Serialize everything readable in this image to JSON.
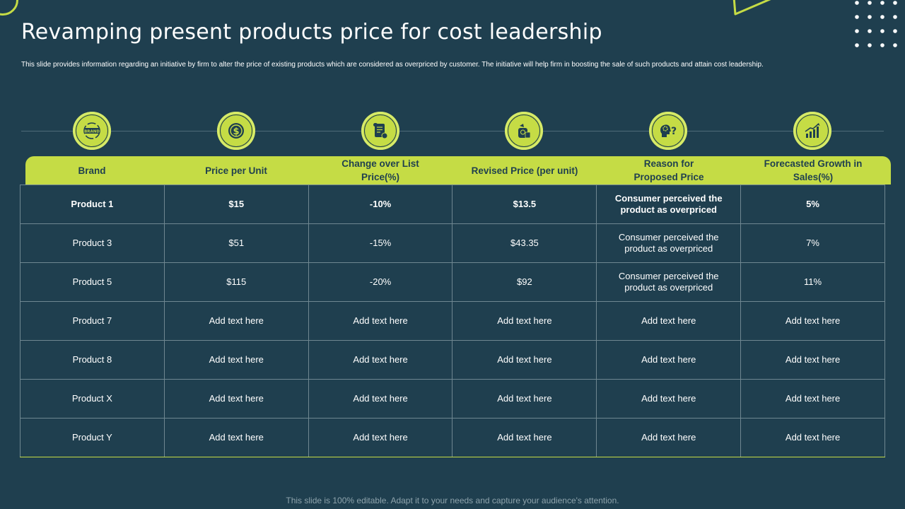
{
  "title": "Revamping present products price for cost leadership",
  "subtitle": "This slide provides information regarding an initiative by firm to alter the price of existing products which are considered as overpriced by customer. The initiative will help firm in boosting the sale of such products and attain cost leadership.",
  "icons": [
    {
      "name": "brand-badge-icon",
      "label": "BRAND"
    },
    {
      "name": "dollar-coin-icon"
    },
    {
      "name": "receipt-scroll-icon"
    },
    {
      "name": "price-tag-bag-icon"
    },
    {
      "name": "head-question-icon"
    },
    {
      "name": "growth-chart-icon"
    }
  ],
  "table": {
    "headers": [
      "Brand",
      "Price per Unit",
      "Change over List Price(%)",
      "Revised Price (per unit)",
      "Reason for Proposed Price",
      "Forecasted Growth in Sales(%)"
    ],
    "rows": [
      [
        "Product 1",
        "$15",
        "-10%",
        "$13.5",
        "Consumer perceived the product as overpriced",
        "5%"
      ],
      [
        "Product 3",
        "$51",
        "-15%",
        "$43.35",
        "Consumer perceived the product as overpriced",
        "7%"
      ],
      [
        "Product 5",
        "$115",
        "-20%",
        "$92",
        "Consumer perceived the product as overpriced",
        "11%"
      ],
      [
        "Product 7",
        "Add text here",
        "Add text here",
        "Add text here",
        "Add text here",
        "Add text here"
      ],
      [
        "Product 8",
        "Add text here",
        "Add text here",
        "Add text here",
        "Add text here",
        "Add text here"
      ],
      [
        "Product X",
        "Add text here",
        "Add text here",
        "Add text here",
        "Add text here",
        "Add text here"
      ],
      [
        "Product Y",
        "Add text here",
        "Add text here",
        "Add text here",
        "Add text here",
        "Add text here"
      ]
    ]
  },
  "footer": "This slide is 100% editable. Adapt it to your needs and capture your audience's attention.",
  "colors": {
    "background": "#1f3f4f",
    "accent": "#c5dc45",
    "text": "#ffffff",
    "grid": "#6f8791"
  }
}
